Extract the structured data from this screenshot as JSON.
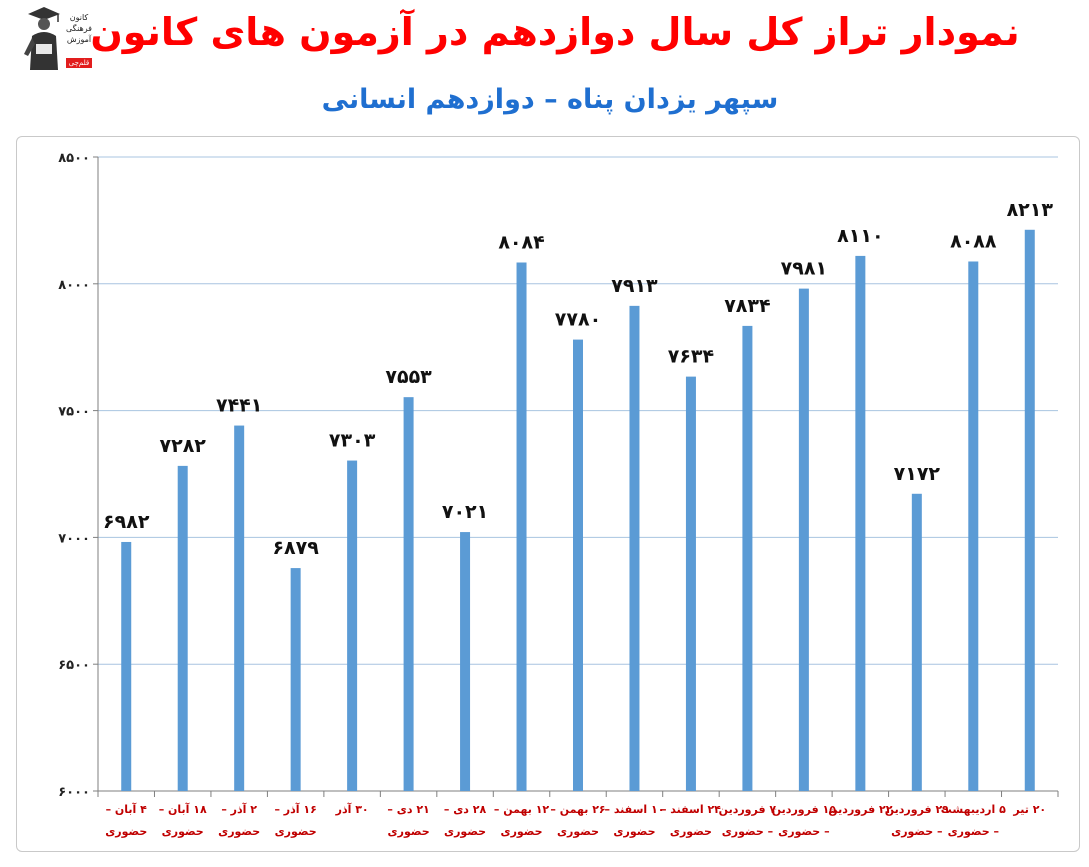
{
  "header": {
    "title": "نمودار تراز کل سال دوازدهم در آزمون های کانون",
    "subtitle": "سپهر یزدان پناه – دوازدهم انسانی"
  },
  "logo": {
    "icon": "graduate-figure-icon",
    "lines": [
      "کانون",
      "فرهنگی",
      "آموزش"
    ],
    "tag": "قلم‌چی"
  },
  "chart_data": {
    "type": "bar",
    "title": "نمودار تراز کل سال دوازدهم در آزمون های کانون",
    "subtitle": "سپهر یزدان پناه – دوازدهم انسانی",
    "categories": [
      [
        "۴ آبان –",
        "حضوری"
      ],
      [
        "۱۸ آبان –",
        "حضوری"
      ],
      [
        "۲ آذر –",
        "حضوری"
      ],
      [
        "۱۶ آذر –",
        "حضوری"
      ],
      [
        "۳۰ آذر"
      ],
      [
        "۲۱ دی –",
        "حضوری"
      ],
      [
        "۲۸ دی –",
        "حضوری"
      ],
      [
        "۱۲ بهمن –",
        "حضوری"
      ],
      [
        "۲۶ بهمن –",
        "حضوری"
      ],
      [
        "۱۰ اسفند –",
        "حضوری"
      ],
      [
        "۲۴ اسفند –",
        "حضوری"
      ],
      [
        "۷ فروردین",
        "– حضوری"
      ],
      [
        "۱۵ فروردین",
        "– حضوری"
      ],
      [
        "۲۲ فروردین"
      ],
      [
        "۲۹ فروردین",
        "– حضوری"
      ],
      [
        "۵ اردیبهشت",
        "– حضوری"
      ],
      [
        "۲۰ تیر"
      ]
    ],
    "values": [
      6982,
      7282,
      7441,
      6879,
      7303,
      7553,
      7021,
      8084,
      7780,
      7913,
      7634,
      7834,
      7981,
      8110,
      7172,
      8088,
      8213
    ],
    "value_labels": [
      "۶۹۸۲",
      "۷۲۸۲",
      "۷۴۴۱",
      "۶۸۷۹",
      "۷۳۰۳",
      "۷۵۵۳",
      "۷۰۲۱",
      "۸۰۸۴",
      "۷۷۸۰",
      "۷۹۱۳",
      "۷۶۳۴",
      "۷۸۳۴",
      "۷۹۸۱",
      "۸۱۱۰",
      "۷۱۷۲",
      "۸۰۸۸",
      "۸۲۱۳"
    ],
    "yticks": [
      6000,
      6500,
      7000,
      7500,
      8000,
      8500
    ],
    "ytick_labels": [
      "۶۰۰۰",
      "۶۵۰۰",
      "۷۰۰۰",
      "۷۵۰۰",
      "۸۰۰۰",
      "۸۵۰۰"
    ],
    "ylim": [
      6000,
      8500
    ],
    "grid": true,
    "bar_color": "#5b9bd5",
    "grid_color": "#a8c4e0",
    "xlabel_color": "#c00000"
  }
}
